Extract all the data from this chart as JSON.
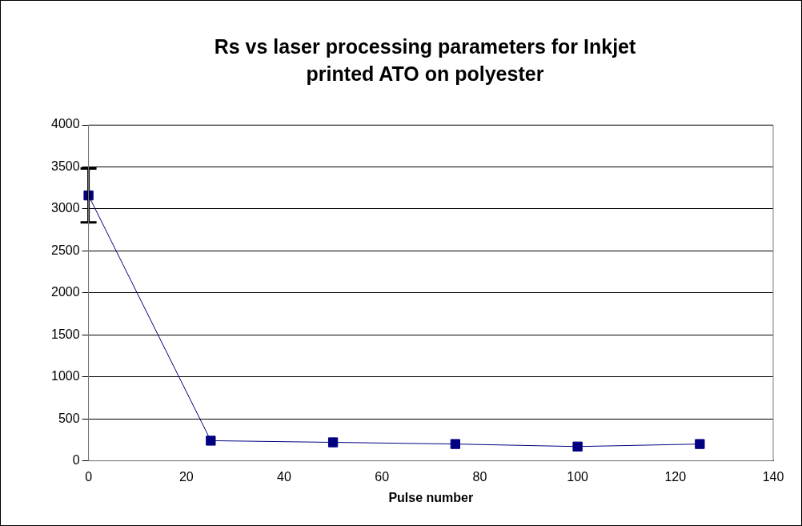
{
  "chart_data": {
    "type": "line",
    "title": "Rs vs laser processing parameters for Inkjet printed ATO on polyester",
    "xlabel": "Pulse number",
    "x": [
      0,
      25,
      50,
      75,
      100,
      125
    ],
    "series": [
      {
        "color": "#000080",
        "values": [
          3160,
          240,
          220,
          200,
          170,
          200
        ],
        "errors": [
          320,
          null,
          null,
          null,
          null,
          null
        ]
      }
    ],
    "xlim": [
      0,
      140
    ],
    "xticks": [
      0,
      20,
      40,
      60,
      80,
      100,
      120,
      140
    ],
    "ylim": [
      0,
      4000
    ],
    "yticks": [
      0,
      500,
      1000,
      1500,
      2000,
      2500,
      3000,
      3500,
      4000
    ],
    "grid": "y",
    "legend": false,
    "marker": "square",
    "line_style": "solid"
  }
}
